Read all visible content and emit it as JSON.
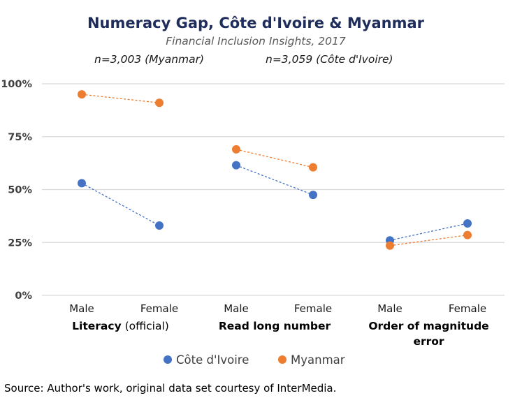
{
  "chart_data": {
    "type": "scatter",
    "title": "Numeracy Gap, Côte d'Ivoire & Myanmar",
    "subtitle": "Financial Inclusion Insights, 2017",
    "notes": [
      "n=3,003 (Myanmar)",
      "n=3,059 (Côte d'Ivoire)"
    ],
    "groups": [
      {
        "label_bold": "Literacy",
        "label_light": " (official)",
        "categories": [
          "Male",
          "Female"
        ]
      },
      {
        "label_bold": "Read long number",
        "label_light": "",
        "categories": [
          "Male",
          "Female"
        ]
      },
      {
        "label_bold": "Order of magnitude",
        "label_bold_line2": "error",
        "label_light": "",
        "categories": [
          "Male",
          "Female"
        ]
      }
    ],
    "x_categories": [
      "Male",
      "Female",
      "Male",
      "Female",
      "Male",
      "Female"
    ],
    "yticks": [
      "0%",
      "25%",
      "50%",
      "75%",
      "100%"
    ],
    "ylim": [
      0,
      100
    ],
    "grid": true,
    "legend_position": "bottom",
    "series": [
      {
        "name": "Côte d'Ivoire",
        "color": "#4472c4",
        "values": [
          53,
          33,
          61.5,
          47.5,
          26,
          34
        ]
      },
      {
        "name": "Myanmar",
        "color": "#ed7d31",
        "values": [
          95,
          91,
          69,
          60.5,
          23.5,
          28.5
        ]
      }
    ]
  },
  "source": "Source: Author's work, original data set courtesy of InterMedia."
}
